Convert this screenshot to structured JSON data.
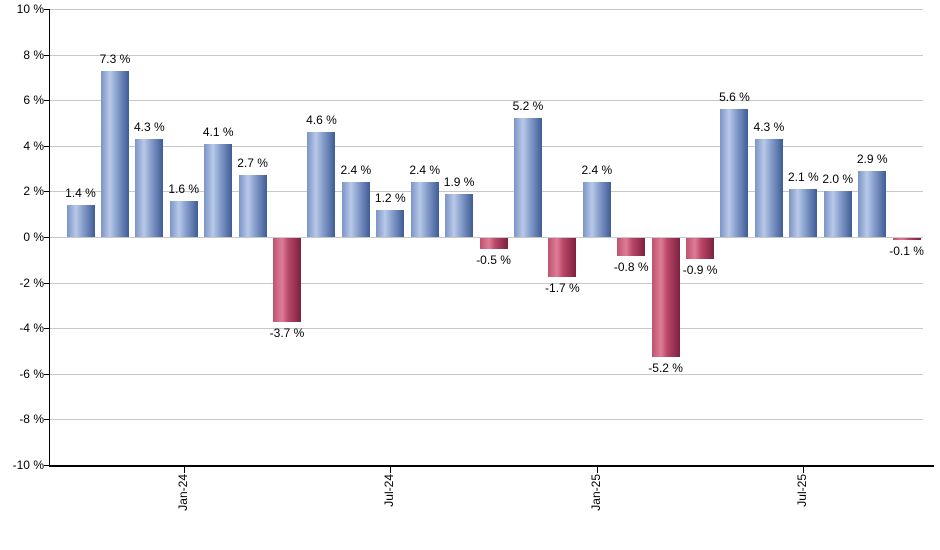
{
  "chart": {
    "background_color": "#ffffff",
    "axis_color": "#000000",
    "gridline_color": "#c8c8c8",
    "text_color": "#000000"
  },
  "chart_data": {
    "type": "bar",
    "title": "",
    "xlabel": "",
    "ylabel": "",
    "ylim": [
      -10,
      10
    ],
    "y_tick_step": 2,
    "grid": true,
    "legend": false,
    "y_ticks": [
      {
        "value": 10,
        "label": "10 %"
      },
      {
        "value": 8,
        "label": "8 %"
      },
      {
        "value": 6,
        "label": "6 %"
      },
      {
        "value": 4,
        "label": "4 %"
      },
      {
        "value": 2,
        "label": "2 %"
      },
      {
        "value": 0,
        "label": "0 %"
      },
      {
        "value": -2,
        "label": "-2 %"
      },
      {
        "value": -4,
        "label": "-4 %"
      },
      {
        "value": -6,
        "label": "-6 %"
      },
      {
        "value": -8,
        "label": "-8 %"
      },
      {
        "value": -10,
        "label": "-10 %"
      }
    ],
    "bars": [
      {
        "value": 1.4,
        "label": "1.4 %"
      },
      {
        "value": 7.3,
        "label": "7.3 %"
      },
      {
        "value": 4.3,
        "label": "4.3 %"
      },
      {
        "value": 1.6,
        "label": "1.6 %"
      },
      {
        "value": 4.1,
        "label": "4.1 %"
      },
      {
        "value": 2.7,
        "label": "2.7 %"
      },
      {
        "value": -3.7,
        "label": "-3.7 %"
      },
      {
        "value": 4.6,
        "label": "4.6 %"
      },
      {
        "value": 2.4,
        "label": "2.4 %"
      },
      {
        "value": 1.2,
        "label": "1.2 %"
      },
      {
        "value": 2.4,
        "label": "2.4 %"
      },
      {
        "value": 1.9,
        "label": "1.9 %"
      },
      {
        "value": -0.5,
        "label": "-0.5 %"
      },
      {
        "value": 5.2,
        "label": "5.2 %"
      },
      {
        "value": -1.7,
        "label": "-1.7 %"
      },
      {
        "value": 2.4,
        "label": "2.4 %"
      },
      {
        "value": -0.8,
        "label": "-0.8 %"
      },
      {
        "value": -5.2,
        "label": "-5.2 %"
      },
      {
        "value": -0.9,
        "label": "-0.9 %"
      },
      {
        "value": 5.6,
        "label": "5.6 %"
      },
      {
        "value": 4.3,
        "label": "4.3 %"
      },
      {
        "value": 2.1,
        "label": "2.1 %"
      },
      {
        "value": 2.0,
        "label": "2.0 %"
      },
      {
        "value": 2.9,
        "label": "2.9 %"
      },
      {
        "value": -0.1,
        "label": "-0.1 %"
      }
    ],
    "x_ticks": [
      {
        "bar_index": 3,
        "label": "Jan-24"
      },
      {
        "bar_index": 9,
        "label": "Jul-24"
      },
      {
        "bar_index": 15,
        "label": "Jan-25"
      },
      {
        "bar_index": 21,
        "label": "Jul-25"
      }
    ],
    "colors": {
      "positive_gradient": [
        "#7a94c6",
        "#b9c9e8",
        "#8ba2cf",
        "#3f5c96"
      ],
      "negative_gradient": [
        "#bd5270",
        "#de7d96",
        "#b84768",
        "#7d2040"
      ]
    }
  }
}
